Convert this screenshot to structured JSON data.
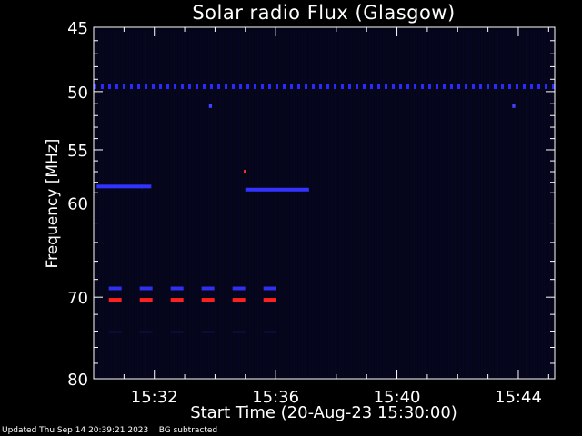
{
  "chart_data": {
    "type": "heatmap",
    "title": "Solar radio Flux (Glasgow)",
    "xlabel": "Start Time (20-Aug-23 15:30:00)",
    "ylabel": "Frequency [MHz]",
    "x_unit": "minutes after 15:30:00",
    "xlim": [
      0,
      15.2
    ],
    "ylim": [
      45,
      80
    ],
    "y_scale": "log",
    "y_inverted": true,
    "y_tick_values": [
      45,
      50,
      55,
      60,
      70,
      80
    ],
    "y_tick_labels": [
      "45",
      "50",
      "55",
      "60",
      "70",
      "80"
    ],
    "x_tick_values": [
      2,
      6,
      10,
      14
    ],
    "x_tick_labels": [
      "15:32",
      "15:36",
      "15:40",
      "15:44"
    ],
    "background": "#05051a",
    "features": [
      {
        "name": "50 MHz band",
        "type": "dashed",
        "y": 49.6,
        "x_start": 0,
        "x_end": 15.2,
        "color": "#2a2aff"
      },
      {
        "name": "58.5 MHz band A",
        "type": "segment",
        "y": 58.4,
        "x_start": 0.1,
        "x_end": 1.6,
        "color": "#3333ff"
      },
      {
        "name": "58.5 MHz band B",
        "type": "segment",
        "y": 58.4,
        "x_start": 1.55,
        "x_end": 1.9,
        "color": "#3333ff"
      },
      {
        "name": "58.6 MHz band C",
        "type": "segment",
        "y": 58.7,
        "x_start": 5.0,
        "x_end": 7.1,
        "color": "#3333ff"
      },
      {
        "name": "69 MHz bursts",
        "type": "dashed",
        "y": 69.0,
        "x_start": 0.5,
        "x_end": 6.0,
        "color": "#3030ee"
      },
      {
        "name": "70.3 MHz bursts",
        "type": "dashed",
        "y": 70.3,
        "x_start": 0.5,
        "x_end": 6.0,
        "color": "#ff2020"
      },
      {
        "name": "74 MHz faint band",
        "type": "dashed",
        "y": 74.1,
        "x_start": 0.5,
        "x_end": 6.0,
        "color": "#12124a"
      },
      {
        "name": "51 MHz spot A",
        "type": "spot",
        "y": 51.2,
        "x_start": 3.8,
        "x_end": 3.9,
        "color": "#4040ff"
      },
      {
        "name": "51 MHz spot B",
        "type": "spot",
        "y": 51.2,
        "x_start": 13.8,
        "x_end": 13.9,
        "color": "#4040ff"
      },
      {
        "name": "57 MHz red spot",
        "type": "spot",
        "y": 57.0,
        "x_start": 4.95,
        "x_end": 5.0,
        "color": "#ff3030"
      }
    ]
  },
  "footer": {
    "updated": "Updated Thu Sep 14 20:39:21 2023",
    "note": "BG subtracted"
  }
}
